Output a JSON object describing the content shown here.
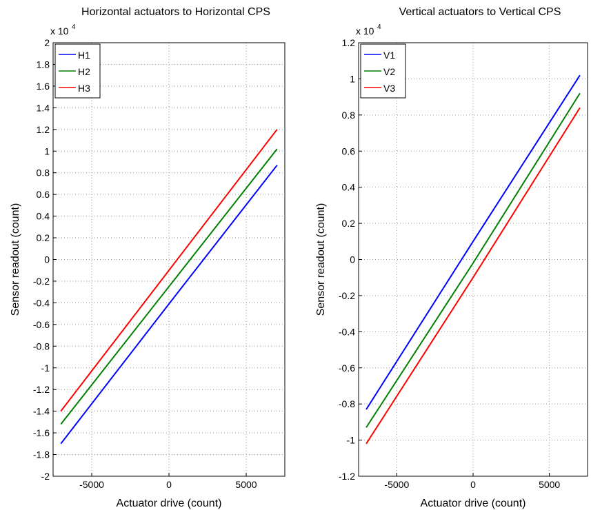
{
  "chart_data": [
    {
      "type": "line",
      "title": "Horizontal actuators to Horizontal CPS",
      "xlabel": "Actuator drive (count)",
      "ylabel": "Sensor readout (count)",
      "y_multiplier": "x 10",
      "y_multiplier_exponent": "4",
      "x": [
        -7000,
        0,
        7000
      ],
      "series": [
        {
          "name": "H1",
          "color": "#0000ff",
          "values": [
            -1.7,
            -0.41,
            0.87
          ]
        },
        {
          "name": "H2",
          "color": "#008000",
          "values": [
            -1.52,
            -0.25,
            1.02
          ]
        },
        {
          "name": "H3",
          "color": "#ff0000",
          "values": [
            -1.4,
            -0.1,
            1.2
          ]
        }
      ],
      "xlim": [
        -7500,
        7500
      ],
      "xticks": [
        -5000,
        0,
        5000
      ],
      "ylim": [
        -2,
        2
      ],
      "yticks": [
        -2,
        -1.8,
        -1.6,
        -1.4,
        -1.2,
        -1,
        -0.8,
        -0.6,
        -0.4,
        -0.2,
        0,
        0.2,
        0.4,
        0.6,
        0.8,
        1,
        1.2,
        1.4,
        1.6,
        1.8,
        2
      ],
      "grid": true,
      "legend": "upper-left"
    },
    {
      "type": "line",
      "title": "Vertical actuators to Vertical CPS",
      "xlabel": "Actuator drive (count)",
      "ylabel": "Sensor readout (count)",
      "y_multiplier": "x 10",
      "y_multiplier_exponent": "4",
      "x": [
        -7000,
        0,
        7000
      ],
      "series": [
        {
          "name": "V1",
          "color": "#0000ff",
          "values": [
            -0.83,
            0.1,
            1.02
          ]
        },
        {
          "name": "V2",
          "color": "#008000",
          "values": [
            -0.93,
            -0.02,
            0.92
          ]
        },
        {
          "name": "V3",
          "color": "#ff0000",
          "values": [
            -1.02,
            -0.1,
            0.84
          ]
        }
      ],
      "xlim": [
        -7500,
        7500
      ],
      "xticks": [
        -5000,
        0,
        5000
      ],
      "ylim": [
        -1.2,
        1.2
      ],
      "yticks": [
        -1.2,
        -1,
        -0.8,
        -0.6,
        -0.4,
        -0.2,
        0,
        0.2,
        0.4,
        0.6,
        0.8,
        1,
        1.2
      ],
      "grid": true,
      "legend": "upper-left"
    }
  ]
}
